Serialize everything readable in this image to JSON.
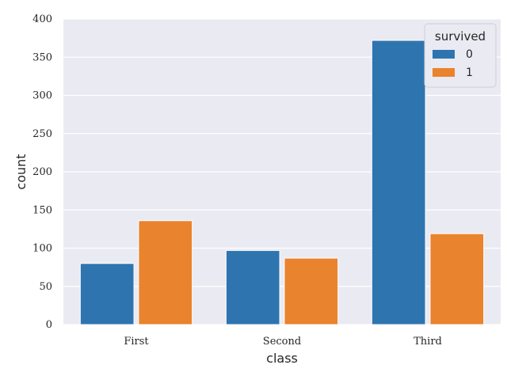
{
  "chart_data": {
    "type": "bar",
    "categories": [
      "First",
      "Second",
      "Third"
    ],
    "series": [
      {
        "name": "0",
        "values": [
          80,
          97,
          372
        ],
        "color": "#2e75b0"
      },
      {
        "name": "1",
        "values": [
          136,
          87,
          119
        ],
        "color": "#e9832d"
      }
    ],
    "xlabel": "class",
    "ylabel": "count",
    "ylim": [
      0,
      400
    ],
    "yticks": [
      0,
      50,
      100,
      150,
      200,
      250,
      300,
      350,
      400
    ],
    "grid": true,
    "legend": {
      "title": "survived",
      "placement": "top-right"
    },
    "background_color": "#eaeaf2"
  }
}
